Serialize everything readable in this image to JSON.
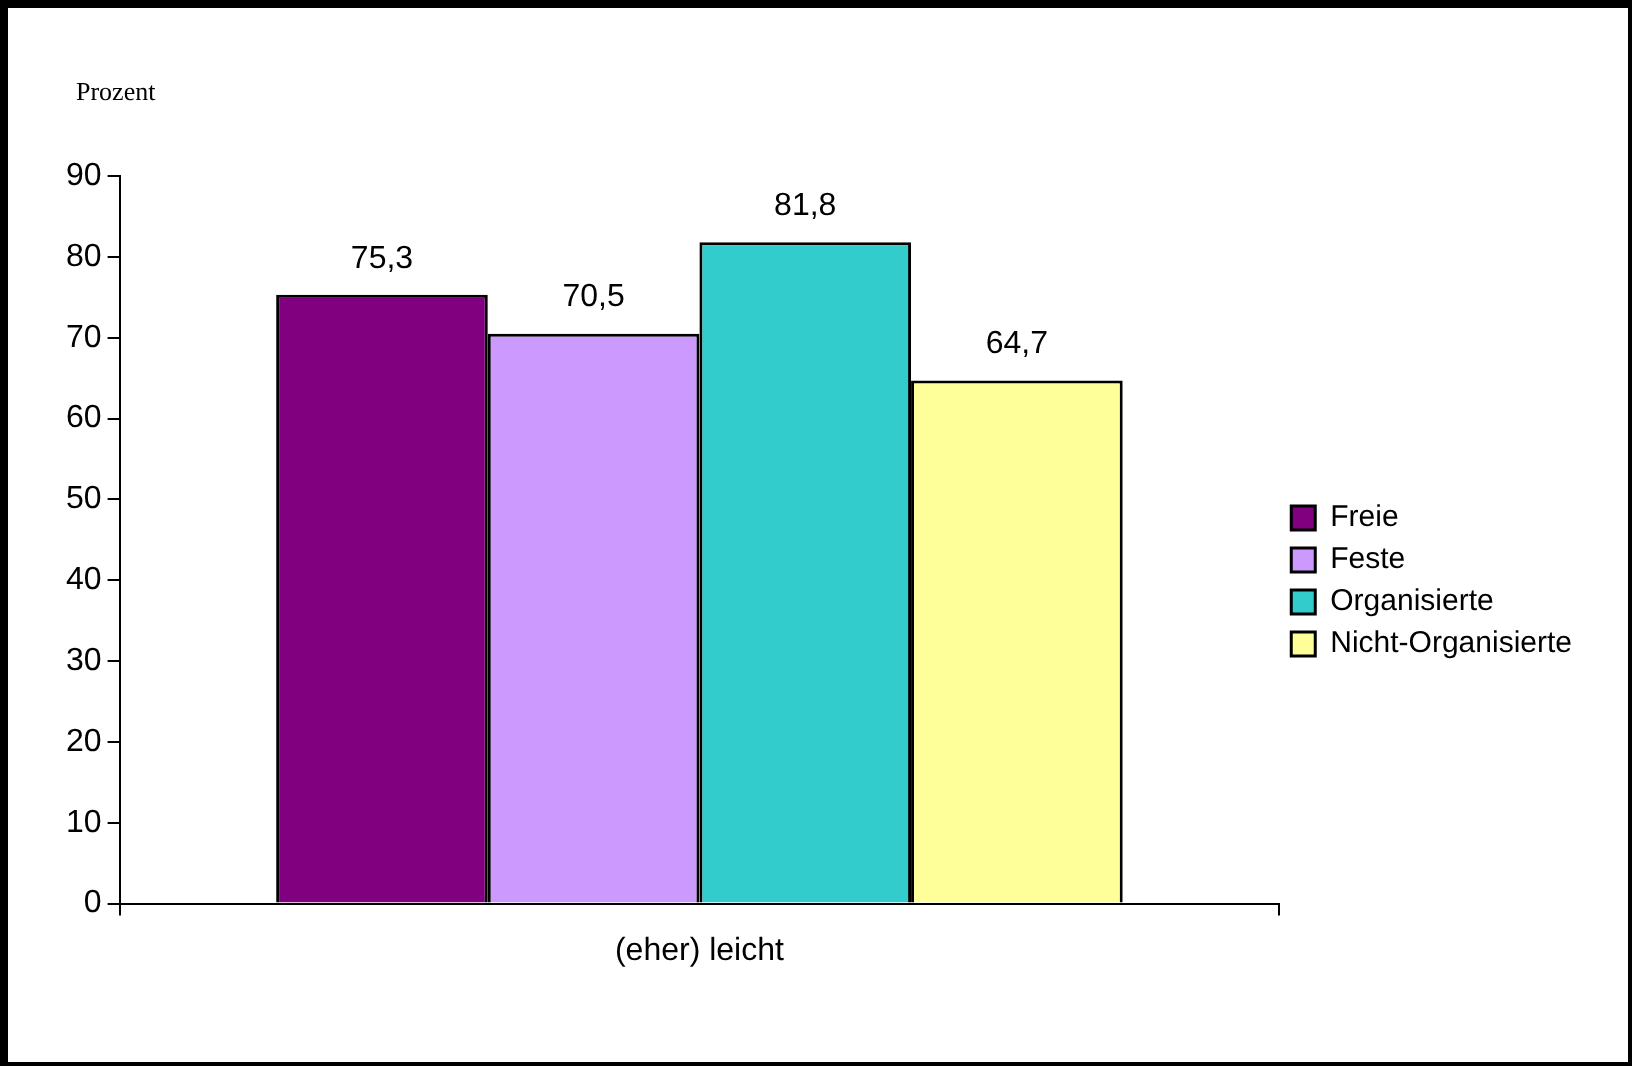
{
  "chart_data": {
    "type": "bar",
    "ylabel": "Prozent",
    "categories": [
      "(eher) leicht"
    ],
    "series": [
      {
        "name": "Freie",
        "color": "#800080",
        "values": [
          75.3
        ],
        "value_labels": [
          "75,3"
        ]
      },
      {
        "name": "Feste",
        "color": "#cc99ff",
        "values": [
          70.5
        ],
        "value_labels": [
          "70,5"
        ]
      },
      {
        "name": "Organisierte",
        "color": "#33cccc",
        "values": [
          81.8
        ],
        "value_labels": [
          "81,8"
        ]
      },
      {
        "name": "Nicht-Organisierte",
        "color": "#ffff99",
        "values": [
          64.7
        ],
        "value_labels": [
          "64,7"
        ]
      }
    ],
    "ylim": [
      0,
      90
    ],
    "yticks": [
      0,
      10,
      20,
      30,
      40,
      50,
      60,
      70,
      80,
      90
    ],
    "grid": false,
    "legend": "right"
  }
}
